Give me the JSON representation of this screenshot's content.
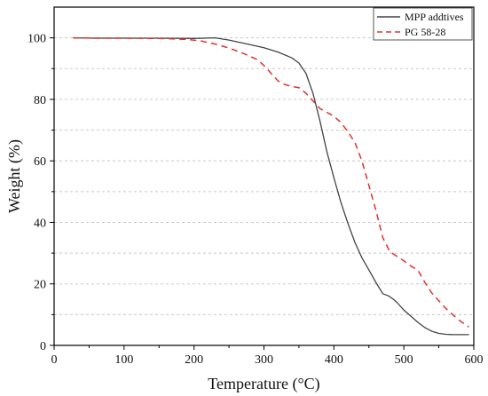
{
  "chart_data": {
    "type": "line",
    "xlabel": "Temperature (°C)",
    "ylabel": "Weight (%)",
    "xlim": [
      0,
      600
    ],
    "ylim": [
      0,
      110
    ],
    "xticks": [
      0,
      100,
      200,
      300,
      400,
      500,
      600
    ],
    "yticks": [
      0,
      20,
      40,
      60,
      80,
      100
    ],
    "grid": "horizontal dashed",
    "legend_position": "top-right",
    "series": [
      {
        "name": "MPP addtives",
        "color": "#444444",
        "line_style": "solid",
        "x": [
          27,
          60,
          100,
          150,
          200,
          230,
          250,
          280,
          300,
          320,
          340,
          350,
          360,
          370,
          380,
          390,
          400,
          410,
          420,
          430,
          440,
          450,
          460,
          470,
          478,
          485,
          490,
          500,
          510,
          520,
          530,
          540,
          550,
          560,
          570,
          580,
          593
        ],
        "y": [
          100,
          99.9,
          99.9,
          99.9,
          99.8,
          100,
          99.3,
          97.8,
          96.8,
          95.4,
          93.5,
          91.8,
          88.5,
          82,
          73,
          63,
          54.5,
          46.5,
          39.7,
          33.5,
          28.5,
          24.5,
          20.5,
          16.8,
          16.1,
          15,
          14,
          11.5,
          9.5,
          7.5,
          5.8,
          4.6,
          3.9,
          3.6,
          3.5,
          3.5,
          3.5
        ]
      },
      {
        "name": "PG 58-28",
        "color": "#e03030",
        "line_style": "dashed",
        "x": [
          27,
          60,
          100,
          150,
          190,
          210,
          230,
          250,
          270,
          290,
          300,
          310,
          320,
          330,
          340,
          350,
          360,
          370,
          380,
          390,
          400,
          410,
          420,
          430,
          440,
          450,
          460,
          470,
          480,
          490,
          500,
          510,
          520,
          530,
          540,
          550,
          560,
          570,
          580,
          593
        ],
        "y": [
          100,
          99.9,
          99.9,
          99.8,
          99.5,
          99,
          98,
          96.7,
          95,
          93,
          91,
          88.5,
          86,
          84.8,
          84.2,
          83.8,
          82,
          79.5,
          77,
          75.8,
          74.5,
          72.5,
          69.5,
          66,
          60,
          52,
          44,
          35,
          30.5,
          29,
          27.5,
          25.8,
          24.5,
          20.5,
          17,
          14.5,
          12,
          10,
          8,
          6
        ]
      }
    ]
  }
}
